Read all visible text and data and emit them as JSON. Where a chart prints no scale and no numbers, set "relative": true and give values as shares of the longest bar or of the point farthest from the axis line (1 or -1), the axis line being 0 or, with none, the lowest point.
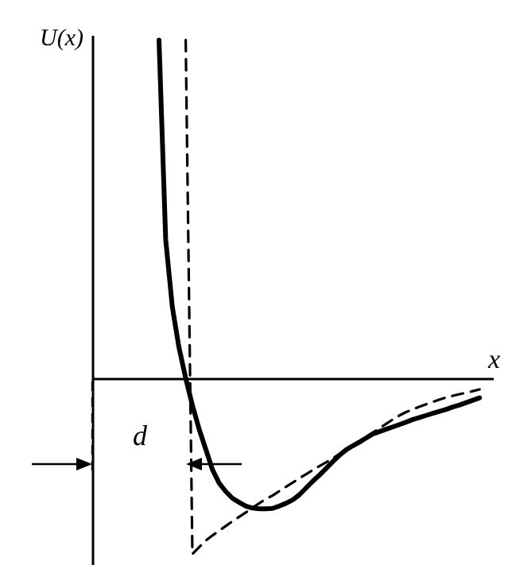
{
  "chart_data": {
    "type": "line",
    "relative": true,
    "xlabel": "x",
    "ylabel": "U(x)",
    "annotations": [
      "d"
    ],
    "categories": [
      null,
      null,
      null,
      null,
      null,
      null,
      null,
      null,
      null,
      null,
      null,
      null,
      null,
      null,
      null,
      null,
      null,
      null,
      null,
      null,
      null,
      null,
      null,
      null,
      null,
      null,
      null,
      null,
      null,
      null,
      null,
      null,
      null,
      null,
      null,
      null,
      null,
      null,
      null,
      null,
      null,
      null,
      null,
      null,
      null,
      null,
      null,
      null,
      null,
      null,
      null,
      null,
      null,
      null,
      null,
      null,
      null,
      null,
      null,
      null,
      null
    ],
    "series": [
      {
        "color": "#000000",
        "line_style": "solid",
        "values": [
          null,
          null,
          null,
          null,
          null,
          null,
          null,
          null,
          null,
          null,
          1.0,
          0.41,
          0.21,
          0.09,
          0.0,
          -0.08,
          -0.15,
          -0.21,
          -0.27,
          -0.31,
          -0.335,
          -0.355,
          -0.367,
          -0.378,
          -0.384,
          -0.386,
          -0.386,
          -0.385,
          -0.378,
          -0.37,
          -0.36,
          -0.345,
          -0.325,
          -0.305,
          -0.287,
          -0.267,
          -0.247,
          -0.228,
          -0.212,
          -0.2,
          -0.189,
          -0.177,
          -0.165,
          -0.158,
          -0.151,
          -0.144,
          -0.137,
          -0.13,
          -0.122,
          -0.116,
          -0.11,
          -0.104,
          -0.098,
          -0.092,
          -0.085,
          -0.079,
          -0.072,
          -0.065,
          -0.058,
          null,
          null
        ]
      },
      {
        "color": "#000000",
        "line_style": "dashed",
        "values": [
          null,
          null,
          null,
          null,
          null,
          null,
          null,
          null,
          null,
          null,
          null,
          null,
          null,
          null,
          1.0,
          -0.52,
          -0.5,
          -0.48,
          -0.465,
          -0.451,
          -0.437,
          -0.423,
          -0.41,
          -0.397,
          -0.383,
          -0.37,
          -0.357,
          -0.347,
          -0.334,
          -0.321,
          -0.309,
          -0.296,
          -0.284,
          -0.272,
          -0.26,
          -0.249,
          -0.237,
          -0.224,
          -0.212,
          -0.199,
          -0.186,
          -0.174,
          -0.161,
          -0.148,
          -0.135,
          -0.122,
          -0.11,
          -0.1,
          -0.092,
          -0.084,
          -0.077,
          -0.07,
          -0.063,
          -0.057,
          -0.052,
          -0.047,
          -0.043,
          -0.038,
          -0.033,
          null,
          null
        ]
      }
    ]
  }
}
